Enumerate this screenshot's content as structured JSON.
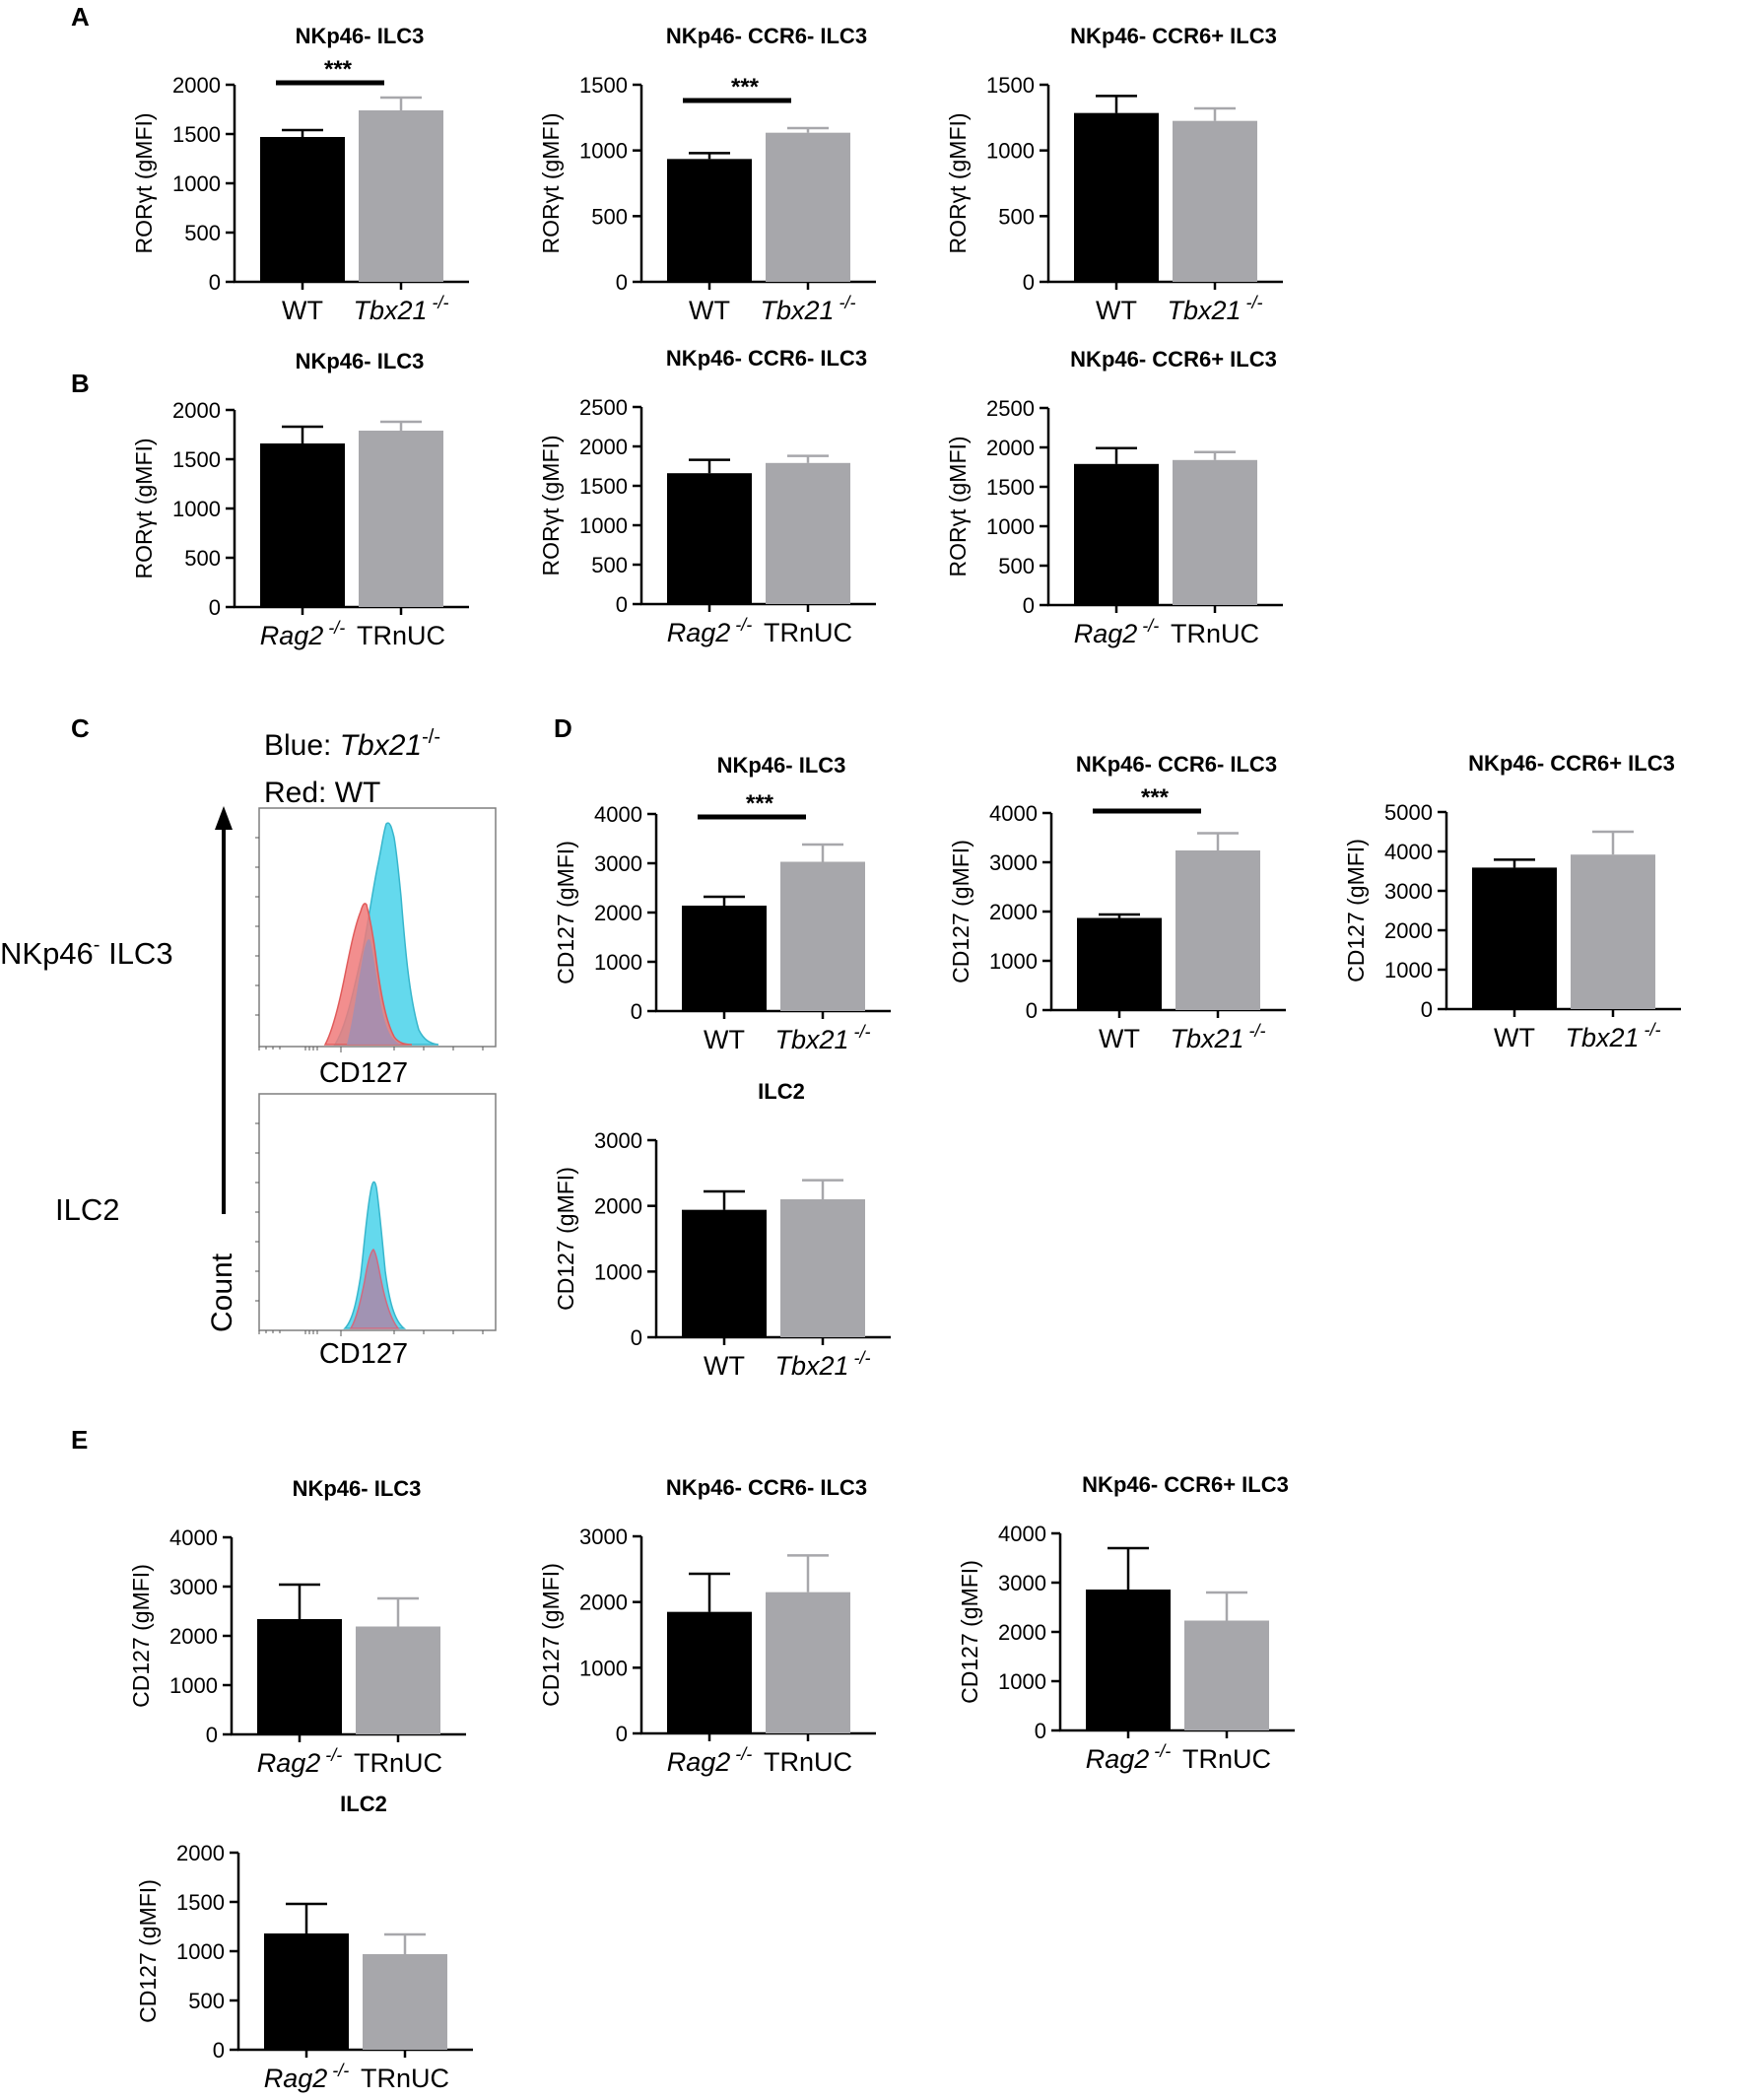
{
  "colors": {
    "wt": "#000000",
    "ko": "#a7a7ab",
    "red_hist": "#f07a7a",
    "blue_hist": "#4fd4ea",
    "overlap_hist": "#a48fb0"
  },
  "panel_labels": [
    "A",
    "B",
    "C",
    "D",
    "E"
  ],
  "histograms": {
    "legend_blue_prefix": "Blue: ",
    "legend_blue_name": "Tbx21",
    "legend_blue_sup": "-/-",
    "legend_red": "Red: WT",
    "row1_label_pre": "NKp46",
    "row1_label_sup": "-",
    "row1_label_post": " ILC3",
    "row2_label": "ILC2",
    "xlabel_1": "CD127",
    "xlabel_2": "CD127",
    "ylabel": "Count"
  },
  "chart_data": [
    {
      "id": "A1",
      "type": "bar",
      "title": "NKp46- ILC3",
      "ylabel": "RORγt (gMFI)",
      "ylim": [
        0,
        2000
      ],
      "yticks": [
        0,
        500,
        1000,
        1500,
        2000
      ],
      "categories": [
        {
          "name": "WT",
          "sup": "",
          "italic": false
        },
        {
          "name": "Tbx21",
          "sup": "-/-",
          "italic": true
        }
      ],
      "values": [
        1470,
        1740
      ],
      "errors": [
        70,
        130
      ],
      "significance": "***"
    },
    {
      "id": "A2",
      "type": "bar",
      "title": "NKp46- CCR6- ILC3",
      "ylabel": "RORγt (gMFI)",
      "ylim": [
        0,
        1500
      ],
      "yticks": [
        0,
        500,
        1000,
        1500
      ],
      "categories": [
        {
          "name": "WT",
          "sup": "",
          "italic": false
        },
        {
          "name": "Tbx21",
          "sup": "-/-",
          "italic": true
        }
      ],
      "values": [
        935,
        1135
      ],
      "errors": [
        45,
        35
      ],
      "significance": "***"
    },
    {
      "id": "A3",
      "type": "bar",
      "title": "NKp46- CCR6+ ILC3",
      "ylabel": "RORγt (gMFI)",
      "ylim": [
        0,
        1500
      ],
      "yticks": [
        0,
        500,
        1000,
        1500
      ],
      "categories": [
        {
          "name": "WT",
          "sup": "",
          "italic": false
        },
        {
          "name": "Tbx21",
          "sup": "-/-",
          "italic": true
        }
      ],
      "values": [
        1285,
        1225
      ],
      "errors": [
        130,
        95
      ],
      "significance": ""
    },
    {
      "id": "B1",
      "type": "bar",
      "title": "NKp46- ILC3",
      "ylabel": "RORγt (gMFI)",
      "ylim": [
        0,
        2000
      ],
      "yticks": [
        0,
        500,
        1000,
        1500,
        2000
      ],
      "categories": [
        {
          "name": "Rag2",
          "sup": "-/-",
          "italic": true
        },
        {
          "name": "TRnUC",
          "sup": "",
          "italic": false
        }
      ],
      "values": [
        1660,
        1790
      ],
      "errors": [
        170,
        90
      ],
      "significance": ""
    },
    {
      "id": "B2",
      "type": "bar",
      "title": "NKp46- CCR6- ILC3",
      "ylabel": "RORγt (gMFI)",
      "ylim": [
        0,
        2500
      ],
      "yticks": [
        0,
        500,
        1000,
        1500,
        2000,
        2500
      ],
      "categories": [
        {
          "name": "Rag2",
          "sup": "-/-",
          "italic": true
        },
        {
          "name": "TRnUC",
          "sup": "",
          "italic": false
        }
      ],
      "values": [
        1660,
        1790
      ],
      "errors": [
        170,
        90
      ],
      "significance": ""
    },
    {
      "id": "B3",
      "type": "bar",
      "title": "NKp46- CCR6+ ILC3",
      "ylabel": "RORγt (gMFI)",
      "ylim": [
        0,
        2500
      ],
      "yticks": [
        0,
        500,
        1000,
        1500,
        2000,
        2500
      ],
      "categories": [
        {
          "name": "Rag2",
          "sup": "-/-",
          "italic": true
        },
        {
          "name": "TRnUC",
          "sup": "",
          "italic": false
        }
      ],
      "values": [
        1790,
        1840
      ],
      "errors": [
        200,
        100
      ],
      "significance": ""
    },
    {
      "id": "D1",
      "type": "bar",
      "title": "NKp46- ILC3",
      "ylabel": "CD127 (gMFI)",
      "ylim": [
        0,
        4000
      ],
      "yticks": [
        0,
        1000,
        2000,
        3000,
        4000
      ],
      "categories": [
        {
          "name": "WT",
          "sup": "",
          "italic": false
        },
        {
          "name": "Tbx21",
          "sup": "-/-",
          "italic": true
        }
      ],
      "values": [
        2140,
        3030
      ],
      "errors": [
        180,
        350
      ],
      "significance": "***"
    },
    {
      "id": "D2",
      "type": "bar",
      "title": "NKp46- CCR6- ILC3",
      "ylabel": "CD127 (gMFI)",
      "ylim": [
        0,
        4000
      ],
      "yticks": [
        0,
        1000,
        2000,
        3000,
        4000
      ],
      "categories": [
        {
          "name": "WT",
          "sup": "",
          "italic": false
        },
        {
          "name": "Tbx21",
          "sup": "-/-",
          "italic": true
        }
      ],
      "values": [
        1870,
        3240
      ],
      "errors": [
        70,
        350
      ],
      "significance": "***"
    },
    {
      "id": "D3",
      "type": "bar",
      "title": "NKp46- CCR6+ ILC3",
      "ylabel": "CD127 (gMFI)",
      "ylim": [
        0,
        5000
      ],
      "yticks": [
        0,
        1000,
        2000,
        3000,
        4000,
        5000
      ],
      "categories": [
        {
          "name": "WT",
          "sup": "",
          "italic": false
        },
        {
          "name": "Tbx21",
          "sup": "-/-",
          "italic": true
        }
      ],
      "values": [
        3590,
        3920
      ],
      "errors": [
        200,
        580
      ],
      "significance": ""
    },
    {
      "id": "D4",
      "type": "bar",
      "title": "ILC2",
      "ylabel": "CD127 (gMFI)",
      "ylim": [
        0,
        3000
      ],
      "yticks": [
        0,
        1000,
        2000,
        3000
      ],
      "categories": [
        {
          "name": "WT",
          "sup": "",
          "italic": false
        },
        {
          "name": "Tbx21",
          "sup": "-/-",
          "italic": true
        }
      ],
      "values": [
        1940,
        2100
      ],
      "errors": [
        280,
        290
      ],
      "significance": ""
    },
    {
      "id": "E1",
      "type": "bar",
      "title": "NKp46- ILC3",
      "ylabel": "CD127 (gMFI)",
      "ylim": [
        0,
        4000
      ],
      "yticks": [
        0,
        1000,
        2000,
        3000,
        4000
      ],
      "categories": [
        {
          "name": "Rag2",
          "sup": "-/-",
          "italic": true
        },
        {
          "name": "TRnUC",
          "sup": "",
          "italic": false
        }
      ],
      "values": [
        2340,
        2190
      ],
      "errors": [
        700,
        570
      ],
      "significance": ""
    },
    {
      "id": "E2",
      "type": "bar",
      "title": "NKp46- CCR6- ILC3",
      "ylabel": "CD127 (gMFI)",
      "ylim": [
        0,
        3000
      ],
      "yticks": [
        0,
        1000,
        2000,
        3000
      ],
      "categories": [
        {
          "name": "Rag2",
          "sup": "-/-",
          "italic": true
        },
        {
          "name": "TRnUC",
          "sup": "",
          "italic": false
        }
      ],
      "values": [
        1850,
        2150
      ],
      "errors": [
        580,
        560
      ],
      "significance": ""
    },
    {
      "id": "E3",
      "type": "bar",
      "title": "NKp46- CCR6+ ILC3",
      "ylabel": "CD127 (gMFI)",
      "ylim": [
        0,
        4000
      ],
      "yticks": [
        0,
        1000,
        2000,
        3000,
        4000
      ],
      "categories": [
        {
          "name": "Rag2",
          "sup": "-/-",
          "italic": true
        },
        {
          "name": "TRnUC",
          "sup": "",
          "italic": false
        }
      ],
      "values": [
        2860,
        2230
      ],
      "errors": [
        840,
        570
      ],
      "significance": ""
    },
    {
      "id": "E4",
      "type": "bar",
      "title": "ILC2",
      "ylabel": "CD127 (gMFI)",
      "ylim": [
        0,
        2000
      ],
      "yticks": [
        0,
        500,
        1000,
        1500,
        2000
      ],
      "categories": [
        {
          "name": "Rag2",
          "sup": "-/-",
          "italic": true
        },
        {
          "name": "TRnUC",
          "sup": "",
          "italic": false
        }
      ],
      "values": [
        1180,
        970
      ],
      "errors": [
        300,
        200
      ],
      "significance": ""
    }
  ]
}
